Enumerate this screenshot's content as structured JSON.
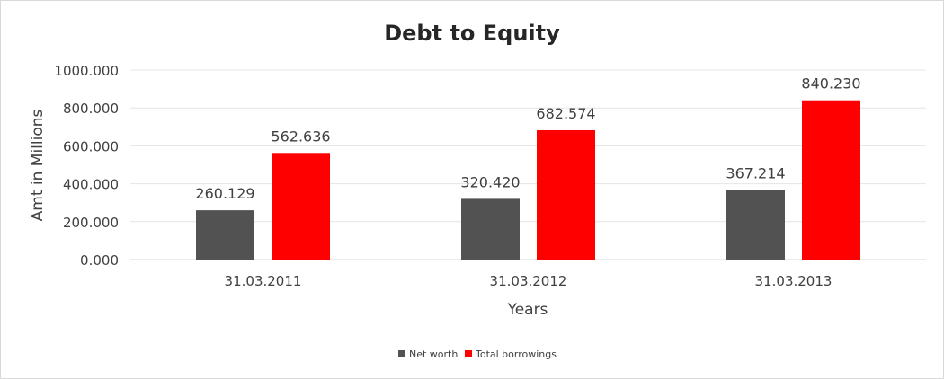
{
  "chart_data": {
    "type": "bar",
    "title": "Debt to Equity",
    "xlabel": "Years",
    "ylabel": "Amt in Millions",
    "categories": [
      "31.03.2011",
      "31.03.2012",
      "31.03.2013"
    ],
    "yticks": [
      "0.000",
      "200.000",
      "400.000",
      "600.000",
      "800.000",
      "1000.000"
    ],
    "ylim": [
      0,
      1000
    ],
    "grid": true,
    "legend_position": "bottom",
    "series": [
      {
        "name": "Net worth",
        "color": "#525252",
        "values": [
          260.129,
          320.42,
          367.214
        ],
        "labels": [
          "260.129",
          "320.420",
          "367.214"
        ]
      },
      {
        "name": "Total borrowings",
        "color": "#ff0000",
        "values": [
          562.636,
          682.574,
          840.23
        ],
        "labels": [
          "562.636",
          "682.574",
          "840.230"
        ]
      }
    ]
  }
}
